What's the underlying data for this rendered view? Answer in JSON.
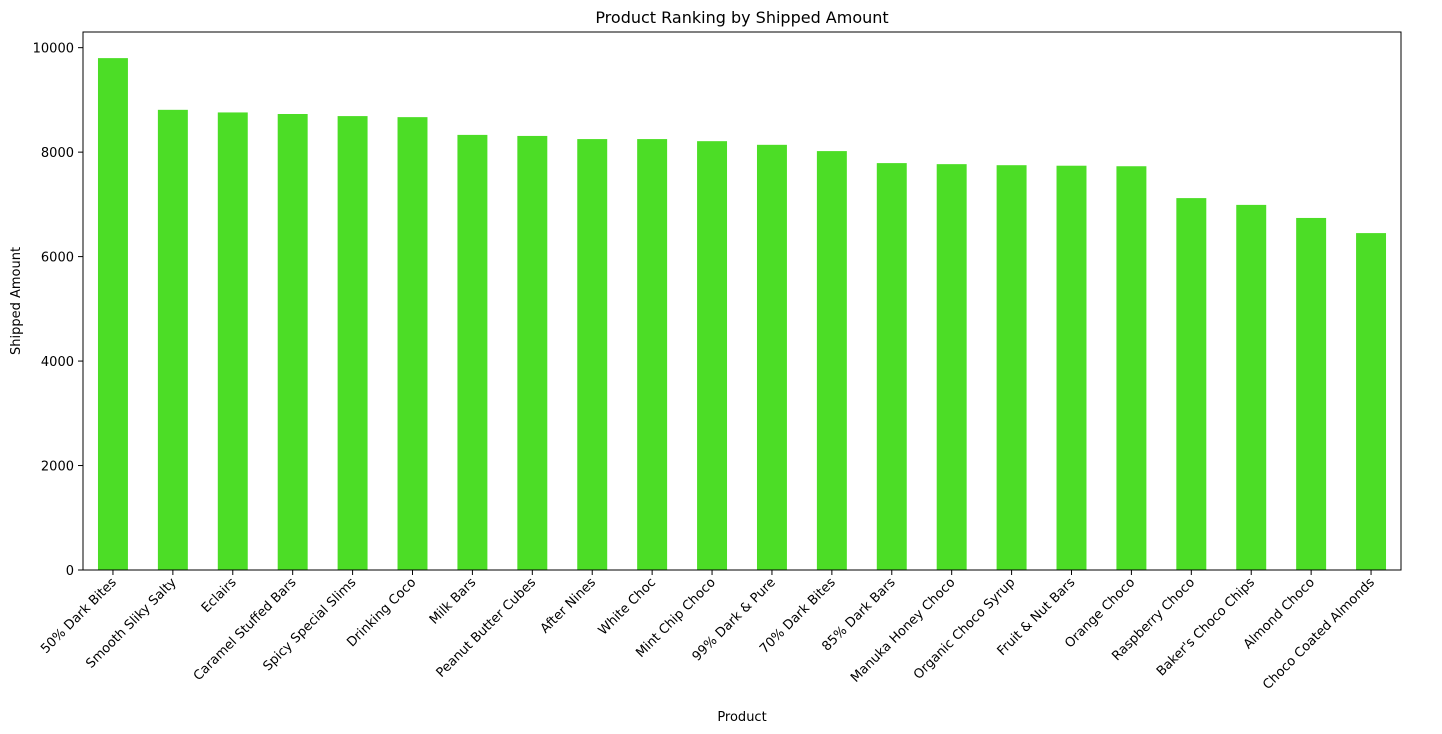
{
  "chart_data": {
    "type": "bar",
    "title": "Product Ranking by Shipped Amount",
    "xlabel": "Product",
    "ylabel": "Shipped Amount",
    "ylim": [
      0,
      10300
    ],
    "yticks": [
      0,
      2000,
      4000,
      6000,
      8000,
      10000
    ],
    "ytick_labels": [
      "0",
      "2000",
      "4000",
      "6000",
      "8000",
      "10000"
    ],
    "grid": false,
    "legend": "none",
    "bar_color": "#4cdd26",
    "categories": [
      "50% Dark Bites",
      "Smooth Sliky Salty",
      "Eclairs",
      "Caramel Stuffed Bars",
      "Spicy Special Slims",
      "Drinking Coco",
      "Milk Bars",
      "Peanut Butter Cubes",
      "After Nines",
      "White Choc",
      "Mint Chip Choco",
      "99% Dark & Pure",
      "70% Dark Bites",
      "85% Dark Bars",
      "Manuka Honey Choco",
      "Organic Choco Syrup",
      "Fruit & Nut Bars",
      "Orange Choco",
      "Raspberry Choco",
      "Baker's Choco Chips",
      "Almond Choco",
      "Choco Coated Almonds"
    ],
    "values": [
      9800,
      8810,
      8760,
      8730,
      8690,
      8670,
      8330,
      8310,
      8250,
      8250,
      8210,
      8140,
      8020,
      7790,
      7770,
      7750,
      7740,
      7730,
      7120,
      6990,
      6740,
      6450
    ]
  }
}
